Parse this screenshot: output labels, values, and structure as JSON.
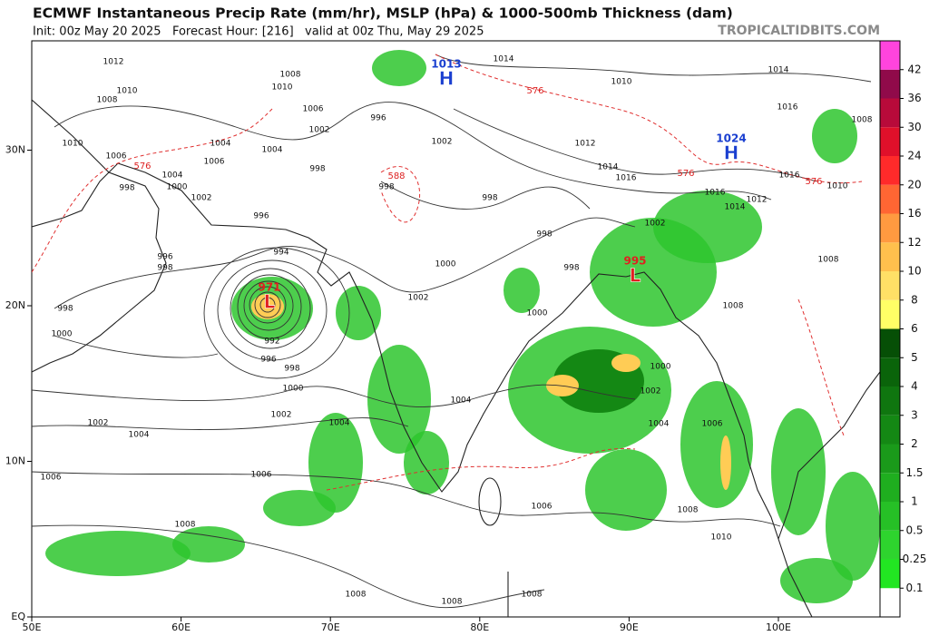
{
  "header": {
    "title": "ECMWF Instantaneous Precip Rate (mm/hr), MSLP (hPa) & 1000-500mb Thickness (dam)",
    "subtitle": "Init: 00z May 20 2025   Forecast Hour: [216]   valid at 00z Thu, May 29 2025",
    "source": "TROPICALTIDBITS.COM"
  },
  "map": {
    "lon_labels": [
      "50E",
      "60E",
      "70E",
      "80E",
      "90E",
      "100E"
    ],
    "lat_labels": [
      "EQ",
      "10N",
      "20N",
      "30N"
    ],
    "colorbar": {
      "ticks": [
        0.1,
        0.25,
        0.5,
        1,
        1.5,
        2,
        3,
        4,
        5,
        6,
        8,
        10,
        12,
        16,
        20,
        24,
        30,
        36,
        42
      ],
      "colors": [
        "#ffffff",
        "#22e622",
        "#2ed42e",
        "#26c026",
        "#1fae1f",
        "#1a9a1a",
        "#148814",
        "#0f760f",
        "#0a640a",
        "#064f06",
        "#ffff66",
        "#ffe066",
        "#ffc04d",
        "#ff9a40",
        "#ff6633",
        "#ff2a2a",
        "#e0102a",
        "#b80a3a",
        "#900a4a",
        "#ff44dd"
      ]
    },
    "isobar_labels": [
      1012,
      1010,
      1008,
      1010,
      1006,
      998,
      1004,
      1000,
      1002,
      1004,
      1006,
      1004,
      1002,
      1006,
      1008,
      1010,
      996,
      1002,
      998,
      998,
      996,
      996,
      998,
      994,
      998,
      1000,
      992,
      996,
      998,
      1000,
      1002,
      1004,
      1002,
      1004,
      1006,
      1006,
      1002,
      1000,
      998,
      998,
      998,
      1000,
      1000,
      1002,
      1004,
      1004,
      1006,
      1008,
      1008,
      1008,
      1008,
      1008,
      1010,
      1012,
      1014,
      1016,
      1016,
      1014,
      1012,
      1010,
      1014,
      1016,
      1008,
      1010,
      1016,
      1008,
      1008,
      1006,
      1002,
      1014
    ],
    "thickness_labels": [
      576,
      588,
      576,
      576,
      576
    ],
    "pressure_centers": [
      {
        "symbol": "L",
        "value": 971
      },
      {
        "symbol": "L",
        "value": 995
      },
      {
        "symbol": "H",
        "value": 1013
      },
      {
        "symbol": "H",
        "value": 1024
      }
    ]
  }
}
